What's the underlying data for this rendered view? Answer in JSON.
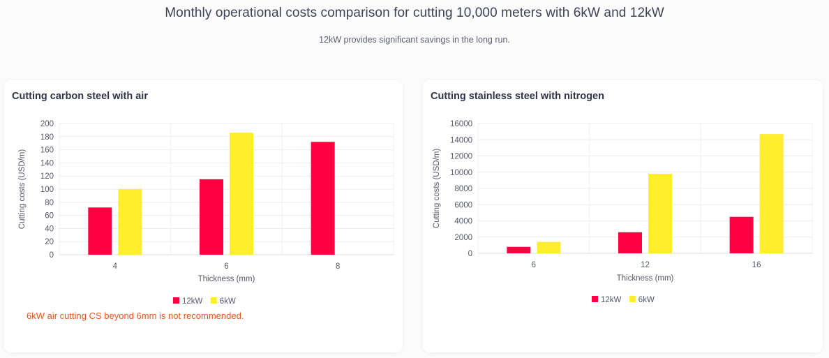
{
  "page": {
    "title": "Monthly operational costs comparison for cutting 10,000 meters with 6kW and 12kW",
    "subtitle": "12kW provides significant savings in the long run."
  },
  "colors": {
    "series_12kw": "#ff0040",
    "series_6kw": "#ffee2e",
    "note": "#e8541c"
  },
  "left_card": {
    "title": "Cutting carbon steel with air",
    "note": "6kW air cutting CS beyond 6mm is not recommended."
  },
  "right_card": {
    "title": "Cutting stainless steel with nitrogen"
  },
  "chart_data": [
    {
      "type": "bar",
      "title": "Cutting carbon steel with air",
      "xlabel": "Thickness (mm)",
      "ylabel": "Cutting costs (USD/m)",
      "categories": [
        "4",
        "6",
        "8"
      ],
      "ylim": [
        0,
        200
      ],
      "yticks": [
        0,
        20,
        40,
        60,
        80,
        100,
        120,
        140,
        160,
        180,
        200
      ],
      "legend": "bottom-center",
      "series": [
        {
          "name": "12kW",
          "color": "#ff0040",
          "values": [
            72,
            115,
            172
          ]
        },
        {
          "name": "6kW",
          "color": "#ffee2e",
          "values": [
            100,
            186,
            null
          ]
        }
      ]
    },
    {
      "type": "bar",
      "title": "Cutting stainless steel with nitrogen",
      "xlabel": "Thickness (mm)",
      "ylabel": "Cutting costs (USD/m)",
      "categories": [
        "6",
        "12",
        "16"
      ],
      "ylim": [
        0,
        16000
      ],
      "yticks": [
        0,
        2000,
        4000,
        6000,
        8000,
        10000,
        12000,
        14000,
        16000
      ],
      "legend": "bottom-center",
      "series": [
        {
          "name": "12kW",
          "color": "#ff0040",
          "values": [
            800,
            2600,
            4500
          ]
        },
        {
          "name": "6kW",
          "color": "#ffee2e",
          "values": [
            1400,
            9800,
            14700
          ]
        }
      ]
    }
  ]
}
